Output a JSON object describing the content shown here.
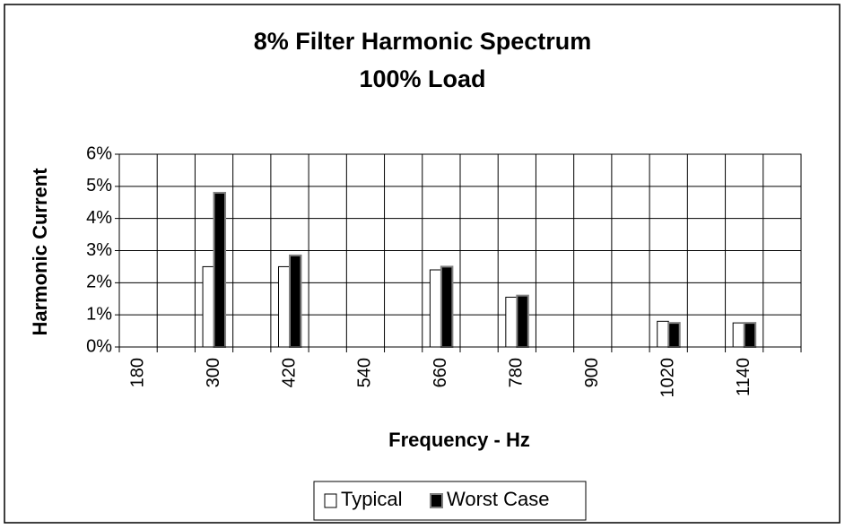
{
  "chart_data": {
    "type": "bar",
    "title": "8% Filter Harmonic Spectrum",
    "subtitle": "100% Load",
    "x_label": "Frequency - Hz",
    "y_label": "Harmonic Current",
    "categories": [
      "180",
      null,
      "300",
      null,
      "420",
      null,
      "540",
      null,
      "660",
      null,
      "780",
      null,
      "900",
      null,
      "1020",
      null,
      "1140",
      null
    ],
    "series": [
      {
        "name": "Typical",
        "color": "#ffffff",
        "values": [
          0,
          0,
          2.5,
          0,
          2.5,
          0,
          0,
          0,
          2.4,
          0,
          1.55,
          0,
          0,
          0,
          0.8,
          0,
          0.75,
          0
        ]
      },
      {
        "name": "Worst Case",
        "color": "#000000",
        "values": [
          0,
          0,
          4.8,
          0,
          2.85,
          0,
          0,
          0,
          2.5,
          0,
          1.6,
          0,
          0,
          0,
          0.75,
          0,
          0.75,
          0
        ]
      }
    ],
    "ylim": [
      0,
      6
    ],
    "yticks": [
      {
        "value": 0,
        "label": "0%"
      },
      {
        "value": 1,
        "label": "1%"
      },
      {
        "value": 2,
        "label": "2%"
      },
      {
        "value": 3,
        "label": "3%"
      },
      {
        "value": 4,
        "label": "4%"
      },
      {
        "value": 5,
        "label": "5%"
      },
      {
        "value": 6,
        "label": "6%"
      }
    ],
    "grid": true,
    "legend": "bottom"
  }
}
